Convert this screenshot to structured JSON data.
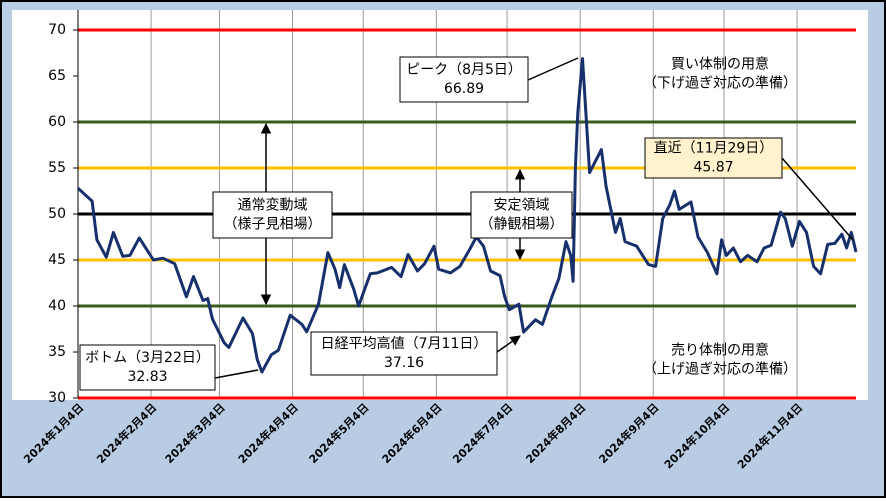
{
  "chart_data": {
    "type": "line",
    "x": [
      "2024-01-04",
      "2024-01-10",
      "2024-01-12",
      "2024-01-16",
      "2024-01-19",
      "2024-01-23",
      "2024-01-26",
      "2024-01-30",
      "2024-02-05",
      "2024-02-09",
      "2024-02-14",
      "2024-02-19",
      "2024-02-22",
      "2024-02-26",
      "2024-02-28",
      "2024-03-01",
      "2024-03-06",
      "2024-03-08",
      "2024-03-14",
      "2024-03-18",
      "2024-03-20",
      "2024-03-22",
      "2024-03-26",
      "2024-03-29",
      "2024-04-03",
      "2024-04-08",
      "2024-04-10",
      "2024-04-15",
      "2024-04-19",
      "2024-04-22",
      "2024-04-24",
      "2024-04-26",
      "2024-04-30",
      "2024-05-02",
      "2024-05-07",
      "2024-05-10",
      "2024-05-16",
      "2024-05-20",
      "2024-05-23",
      "2024-05-27",
      "2024-05-30",
      "2024-06-03",
      "2024-06-05",
      "2024-06-10",
      "2024-06-14",
      "2024-06-18",
      "2024-06-21",
      "2024-06-24",
      "2024-06-27",
      "2024-07-01",
      "2024-07-03",
      "2024-07-05",
      "2024-07-09",
      "2024-07-11",
      "2024-07-16",
      "2024-07-19",
      "2024-07-23",
      "2024-07-26",
      "2024-07-29",
      "2024-07-31",
      "2024-08-01",
      "2024-08-02",
      "2024-08-03",
      "2024-08-05",
      "2024-08-08",
      "2024-08-13",
      "2024-08-15",
      "2024-08-19",
      "2024-08-21",
      "2024-08-23",
      "2024-08-28",
      "2024-09-02",
      "2024-09-05",
      "2024-09-08",
      "2024-09-11",
      "2024-09-13",
      "2024-09-15",
      "2024-09-20",
      "2024-09-23",
      "2024-09-27",
      "2024-10-01",
      "2024-10-03",
      "2024-10-05",
      "2024-10-08",
      "2024-10-11",
      "2024-10-14",
      "2024-10-18",
      "2024-10-21",
      "2024-10-24",
      "2024-10-28",
      "2024-10-30",
      "2024-11-02",
      "2024-11-05",
      "2024-11-08",
      "2024-11-11",
      "2024-11-14",
      "2024-11-17",
      "2024-11-20",
      "2024-11-23",
      "2024-11-25",
      "2024-11-27",
      "2024-11-29"
    ],
    "series": [
      {
        "color": "#17306b",
        "values": [
          52.8,
          51.4,
          47.2,
          45.3,
          48.0,
          45.4,
          45.5,
          47.4,
          45.0,
          45.2,
          44.6,
          41.0,
          43.2,
          40.6,
          40.8,
          38.6,
          36.0,
          35.5,
          38.7,
          37.0,
          34.2,
          32.83,
          34.7,
          35.2,
          39.0,
          38.0,
          37.2,
          40.2,
          45.8,
          44.0,
          42.0,
          44.5,
          41.8,
          40.0,
          43.5,
          43.6,
          44.2,
          43.2,
          45.6,
          43.8,
          44.6,
          46.5,
          44.0,
          43.6,
          44.3,
          46.1,
          47.5,
          46.5,
          43.8,
          43.3,
          41.0,
          39.6,
          40.2,
          37.16,
          38.5,
          38.0,
          41.0,
          43.0,
          47.0,
          45.5,
          42.7,
          55.0,
          61.0,
          66.89,
          54.5,
          57.0,
          53.0,
          48.0,
          49.5,
          47.0,
          46.5,
          44.5,
          44.3,
          49.5,
          51.0,
          52.5,
          50.5,
          51.3,
          47.5,
          45.8,
          43.5,
          47.2,
          45.5,
          46.3,
          44.8,
          45.5,
          44.8,
          46.3,
          46.6,
          50.2,
          49.5,
          46.5,
          49.2,
          48.0,
          44.3,
          43.5,
          46.7,
          46.8,
          47.8,
          46.3,
          48.0,
          45.87
        ]
      }
    ],
    "xlim": [
      "2024-01-04",
      "2024-11-29"
    ],
    "xticks": [
      {
        "value": "2024-01-04",
        "label": "2024年1月4日"
      },
      {
        "value": "2024-02-04",
        "label": "2024年2月4日"
      },
      {
        "value": "2024-03-04",
        "label": "2024年3月4日"
      },
      {
        "value": "2024-04-04",
        "label": "2024年4月4日"
      },
      {
        "value": "2024-05-04",
        "label": "2024年5月4日"
      },
      {
        "value": "2024-06-04",
        "label": "2024年6月4日"
      },
      {
        "value": "2024-07-04",
        "label": "2024年7月4日"
      },
      {
        "value": "2024-08-04",
        "label": "2024年8月4日"
      },
      {
        "value": "2024-09-04",
        "label": "2024年9月4日"
      },
      {
        "value": "2024-10-04",
        "label": "2024年10月4日"
      },
      {
        "value": "2024-11-04",
        "label": "2024年11月4日"
      }
    ],
    "ylim": [
      30,
      70
    ],
    "yticks": [
      30,
      35,
      40,
      45,
      50,
      55,
      60,
      65,
      70
    ],
    "ref_lines": [
      {
        "value": 70,
        "color": "#ff0000"
      },
      {
        "value": 60,
        "color": "#3a5a1e"
      },
      {
        "value": 55,
        "color": "#ffc000"
      },
      {
        "value": 50,
        "color": "#000000"
      },
      {
        "value": 45,
        "color": "#ffc000"
      },
      {
        "value": 40,
        "color": "#3a5a1e"
      },
      {
        "value": 30,
        "color": "#ff0000"
      }
    ],
    "annotations": [
      {
        "lines": [
          "ピーク（8月5日）",
          "66.89"
        ]
      },
      {
        "lines": [
          "買い体制の用意",
          "（下げ過ぎ対応の準備）"
        ]
      },
      {
        "lines": [
          "直近（11月29日）",
          "45.87"
        ]
      },
      {
        "lines": [
          "通常変動域",
          "（様子見相場）"
        ]
      },
      {
        "lines": [
          "安定領域",
          "（静観相場）"
        ]
      },
      {
        "lines": [
          "ボトム（3月22日）",
          "32.83"
        ]
      },
      {
        "lines": [
          "日経平均高値（7月11日）",
          "37.16"
        ]
      },
      {
        "lines": [
          "売り体制の用意",
          "（上げ過ぎ対応の準備）"
        ]
      }
    ]
  }
}
